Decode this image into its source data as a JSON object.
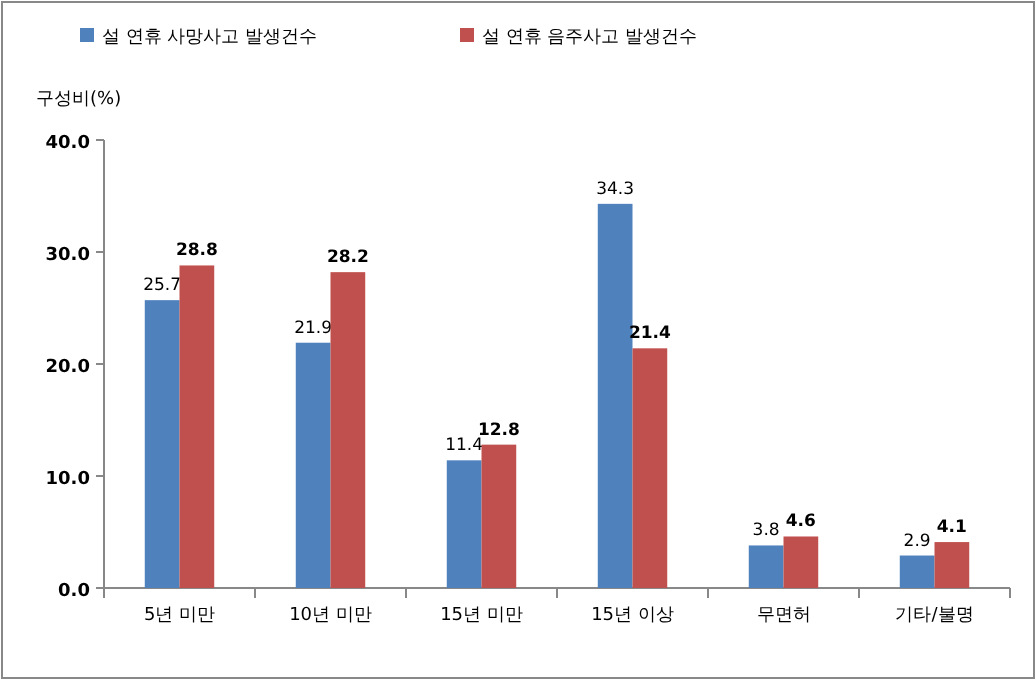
{
  "chart_data": {
    "type": "bar",
    "ylabel": "구성비(%)",
    "categories": [
      "5년 미만",
      "10년 미만",
      "15년 미만",
      "15년 이상",
      "무면허",
      "기타/불명"
    ],
    "series": [
      {
        "name": "설 연휴 사망사고 발생건수",
        "color": "#4f81bd",
        "values": [
          25.7,
          21.9,
          11.4,
          34.3,
          3.8,
          2.9
        ]
      },
      {
        "name": "설 연휴 음주사고 발생건수",
        "color": "#c0504d",
        "values": [
          28.8,
          28.2,
          12.8,
          21.4,
          4.6,
          4.1
        ]
      }
    ],
    "ylim": [
      0,
      40
    ],
    "yticks": [
      {
        "value": 0,
        "label": "0.0"
      },
      {
        "value": 10,
        "label": "10.0"
      },
      {
        "value": 20,
        "label": "20.0"
      },
      {
        "value": 30,
        "label": "30.0"
      },
      {
        "value": 40,
        "label": "40.0"
      }
    ],
    "data_labels": true,
    "legend": "top left",
    "grid": false
  }
}
